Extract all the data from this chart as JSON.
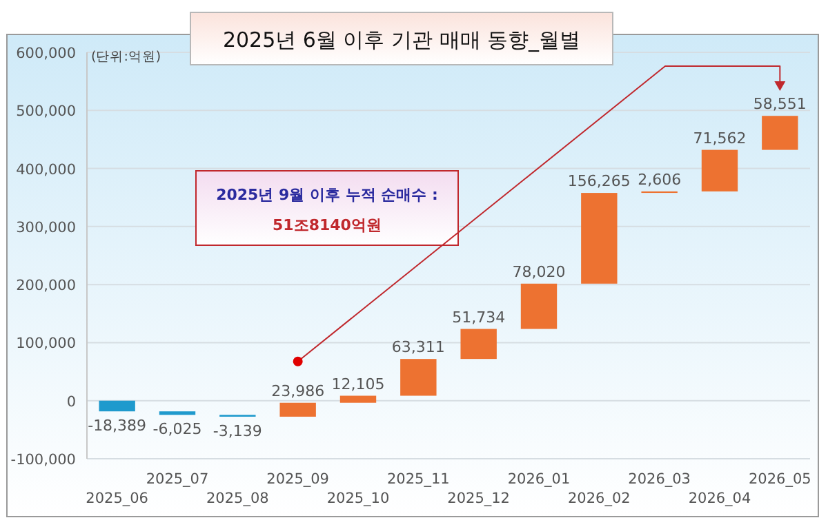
{
  "chart_data": {
    "type": "bar",
    "title": "2025년 6월 이후 기관 매매 동향_월별",
    "annotations": [
      "(단위:억원)",
      "2025년 9월 이후 누적 순매수 :",
      "51조8140억원"
    ],
    "categories": [
      "2025_06",
      "2025_07",
      "2025_08",
      "2025_09",
      "2025_10",
      "2025_11",
      "2025_12",
      "2026_01",
      "2026_02",
      "2026_03",
      "2026_04",
      "2026_05"
    ],
    "values": [
      -18389,
      -6025,
      -3139,
      23986,
      12105,
      63311,
      51734,
      78020,
      156265,
      2606,
      71562,
      58551
    ],
    "base": [
      0,
      -18389,
      -24414,
      -27553,
      -3567,
      8538,
      71849,
      123583,
      201603,
      357868,
      360474,
      432036
    ],
    "colors": [
      "#1f9acd",
      "#1f9acd",
      "#1f9acd",
      "#ed7231",
      "#ed7231",
      "#ed7231",
      "#ed7231",
      "#ed7231",
      "#ed7231",
      "#ed7231",
      "#ed7231",
      "#ed7231"
    ],
    "value_labels": [
      "-18,389",
      "-6,025",
      "-3,139",
      "23,986",
      "12,105",
      "63,311",
      "51,734",
      "78,020",
      "156,265",
      "2,606",
      "71,562",
      "58,551"
    ],
    "ylim": [
      -100000,
      600000
    ],
    "yticks": [
      {
        "value": -100000,
        "label": "-100,000"
      },
      {
        "value": 0,
        "label": "0"
      },
      {
        "value": 100000,
        "label": "100,000"
      },
      {
        "value": 200000,
        "label": "200,000"
      },
      {
        "value": 300000,
        "label": "300,000"
      },
      {
        "value": 400000,
        "label": "400,000"
      },
      {
        "value": 500000,
        "label": "500,000"
      },
      {
        "value": 600000,
        "label": "600,000"
      }
    ],
    "grid": "y"
  }
}
